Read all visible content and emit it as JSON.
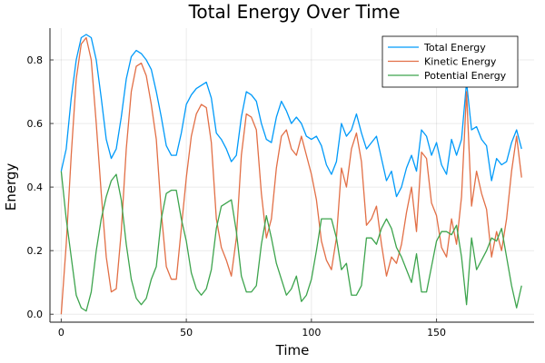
{
  "chart_data": {
    "type": "line",
    "title": "Total Energy Over Time",
    "xlabel": "Time",
    "ylabel": "Energy",
    "xlim": [
      -4.5,
      189
    ],
    "ylim": [
      -0.025,
      0.9
    ],
    "xticks": [
      0,
      50,
      100,
      150
    ],
    "xtick_labels": [
      "0",
      "50",
      "100",
      "150"
    ],
    "yticks": [
      0.0,
      0.2,
      0.4,
      0.6,
      0.8
    ],
    "ytick_labels": [
      "0.0",
      "0.2",
      "0.4",
      "0.6",
      "0.8"
    ],
    "grid": true,
    "legend_position": "top-right",
    "x": [
      0,
      2,
      4,
      6,
      8,
      10,
      12,
      14,
      16,
      18,
      20,
      22,
      24,
      26,
      28,
      30,
      32,
      34,
      36,
      38,
      40,
      42,
      44,
      46,
      48,
      50,
      52,
      54,
      56,
      58,
      60,
      62,
      64,
      66,
      68,
      70,
      72,
      74,
      76,
      78,
      80,
      82,
      84,
      86,
      88,
      90,
      92,
      94,
      96,
      98,
      100,
      102,
      104,
      106,
      108,
      110,
      112,
      114,
      116,
      118,
      120,
      122,
      124,
      126,
      128,
      130,
      132,
      134,
      136,
      138,
      140,
      142,
      144,
      146,
      148,
      150,
      152,
      154,
      156,
      158,
      160,
      162,
      164,
      166,
      168,
      170,
      172,
      174,
      176,
      178,
      180,
      182,
      184
    ],
    "series": [
      {
        "name": "Total Energy",
        "color": "#009af9",
        "values": [
          0.45,
          0.52,
          0.68,
          0.8,
          0.87,
          0.88,
          0.87,
          0.8,
          0.68,
          0.55,
          0.49,
          0.52,
          0.62,
          0.74,
          0.81,
          0.83,
          0.82,
          0.8,
          0.77,
          0.7,
          0.62,
          0.53,
          0.5,
          0.5,
          0.57,
          0.66,
          0.69,
          0.71,
          0.72,
          0.73,
          0.68,
          0.57,
          0.55,
          0.52,
          0.48,
          0.5,
          0.62,
          0.7,
          0.69,
          0.67,
          0.6,
          0.55,
          0.54,
          0.62,
          0.67,
          0.64,
          0.6,
          0.62,
          0.6,
          0.56,
          0.55,
          0.56,
          0.53,
          0.47,
          0.44,
          0.48,
          0.6,
          0.56,
          0.58,
          0.63,
          0.57,
          0.52,
          0.54,
          0.56,
          0.49,
          0.42,
          0.45,
          0.37,
          0.4,
          0.46,
          0.5,
          0.45,
          0.58,
          0.56,
          0.5,
          0.54,
          0.47,
          0.44,
          0.55,
          0.5,
          0.55,
          0.73,
          0.58,
          0.59,
          0.55,
          0.53,
          0.42,
          0.49,
          0.47,
          0.48,
          0.54,
          0.58,
          0.52
        ]
      },
      {
        "name": "Kinetic Energy",
        "color": "#e26f46",
        "values": [
          0.0,
          0.22,
          0.5,
          0.74,
          0.85,
          0.87,
          0.8,
          0.6,
          0.38,
          0.18,
          0.07,
          0.08,
          0.26,
          0.52,
          0.7,
          0.78,
          0.79,
          0.75,
          0.66,
          0.55,
          0.32,
          0.15,
          0.11,
          0.11,
          0.27,
          0.43,
          0.56,
          0.63,
          0.66,
          0.65,
          0.54,
          0.3,
          0.21,
          0.17,
          0.12,
          0.24,
          0.5,
          0.63,
          0.62,
          0.58,
          0.38,
          0.24,
          0.3,
          0.46,
          0.56,
          0.58,
          0.52,
          0.5,
          0.56,
          0.5,
          0.44,
          0.36,
          0.23,
          0.17,
          0.14,
          0.24,
          0.46,
          0.4,
          0.52,
          0.57,
          0.48,
          0.28,
          0.3,
          0.34,
          0.22,
          0.12,
          0.18,
          0.16,
          0.22,
          0.32,
          0.4,
          0.26,
          0.51,
          0.49,
          0.35,
          0.31,
          0.21,
          0.18,
          0.3,
          0.22,
          0.37,
          0.7,
          0.34,
          0.45,
          0.38,
          0.33,
          0.18,
          0.26,
          0.2,
          0.3,
          0.45,
          0.56,
          0.43
        ]
      },
      {
        "name": "Potential Energy",
        "color": "#3da44d",
        "values": [
          0.45,
          0.3,
          0.18,
          0.06,
          0.02,
          0.01,
          0.07,
          0.2,
          0.3,
          0.37,
          0.42,
          0.44,
          0.36,
          0.22,
          0.11,
          0.05,
          0.03,
          0.05,
          0.11,
          0.15,
          0.3,
          0.38,
          0.39,
          0.39,
          0.3,
          0.23,
          0.13,
          0.08,
          0.06,
          0.08,
          0.14,
          0.27,
          0.34,
          0.35,
          0.36,
          0.26,
          0.12,
          0.07,
          0.07,
          0.09,
          0.22,
          0.31,
          0.24,
          0.16,
          0.11,
          0.06,
          0.08,
          0.12,
          0.04,
          0.06,
          0.11,
          0.2,
          0.3,
          0.3,
          0.3,
          0.24,
          0.14,
          0.16,
          0.06,
          0.06,
          0.09,
          0.24,
          0.24,
          0.22,
          0.27,
          0.3,
          0.27,
          0.21,
          0.18,
          0.14,
          0.1,
          0.19,
          0.07,
          0.07,
          0.15,
          0.23,
          0.26,
          0.26,
          0.25,
          0.28,
          0.18,
          0.03,
          0.24,
          0.14,
          0.17,
          0.2,
          0.24,
          0.23,
          0.27,
          0.18,
          0.09,
          0.02,
          0.09
        ]
      }
    ]
  }
}
